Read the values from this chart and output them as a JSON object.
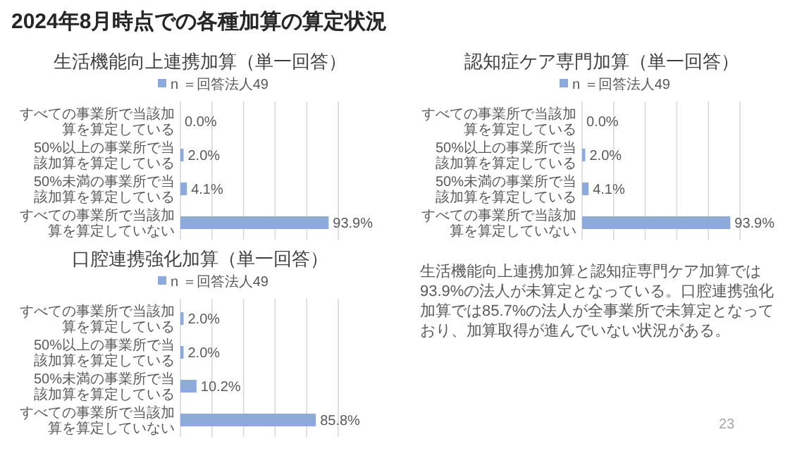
{
  "chart_data": [
    {
      "type": "bar",
      "orientation": "horizontal",
      "title": "生活機能向上連携加算（単一回答）",
      "categories": [
        "すべての事業所で当該加算を算定している",
        "50%以上の事業所で当該加算を算定している",
        "50%未満の事業所で当該加算を算定している",
        "すべての事業所で当該加算を算定していない"
      ],
      "series": [
        {
          "name": "n ＝回答法人49",
          "color": "#8eaadb",
          "values": [
            0.0,
            2.0,
            4.1,
            93.9
          ],
          "value_labels": [
            "0.0%",
            "2.0%",
            "4.1%",
            "93.9%"
          ]
        }
      ],
      "xlim": [
        0,
        100
      ],
      "xticks": [
        {
          "value": 0,
          "label": null
        },
        {
          "value": 20,
          "label": null
        },
        {
          "value": 40,
          "label": null
        },
        {
          "value": 60,
          "label": null
        },
        {
          "value": 80,
          "label": null
        },
        {
          "value": 100,
          "label": null
        }
      ],
      "tick_labels": "y",
      "grid": "x",
      "legend": "top"
    },
    {
      "type": "bar",
      "orientation": "horizontal",
      "title": "認知症ケア専門加算（単一回答）",
      "categories": [
        "すべての事業所で当該加算を算定している",
        "50%以上の事業所で当該加算を算定している",
        "50%未満の事業所で当該加算を算定している",
        "すべての事業所で当該加算を算定していない"
      ],
      "series": [
        {
          "name": "n ＝回答法人49",
          "color": "#8eaadb",
          "values": [
            0.0,
            2.0,
            4.1,
            93.9
          ],
          "value_labels": [
            "0.0%",
            "2.0%",
            "4.1%",
            "93.9%"
          ]
        }
      ],
      "xlim": [
        0,
        100
      ],
      "xticks": [
        {
          "value": 0,
          "label": null
        },
        {
          "value": 20,
          "label": null
        },
        {
          "value": 40,
          "label": null
        },
        {
          "value": 60,
          "label": null
        },
        {
          "value": 80,
          "label": null
        },
        {
          "value": 100,
          "label": null
        }
      ],
      "tick_labels": "y",
      "grid": "x",
      "legend": "top"
    },
    {
      "type": "bar",
      "orientation": "horizontal",
      "title": "口腔連携強化加算（単一回答）",
      "categories": [
        "すべての事業所で当該加算を算定している",
        "50%以上の事業所で当該加算を算定している",
        "50%未満の事業所で当該加算を算定している",
        "すべての事業所で当該加算を算定していない"
      ],
      "series": [
        {
          "name": "n ＝回答法人49",
          "color": "#8eaadb",
          "values": [
            2.0,
            2.0,
            10.2,
            85.8
          ],
          "value_labels": [
            "2.0%",
            "2.0%",
            "10.2%",
            "85.8%"
          ]
        }
      ],
      "xlim": [
        0,
        100
      ],
      "xticks": [
        {
          "value": 0,
          "label": null
        },
        {
          "value": 20,
          "label": null
        },
        {
          "value": 40,
          "label": null
        },
        {
          "value": 60,
          "label": null
        },
        {
          "value": 80,
          "label": null
        },
        {
          "value": 100,
          "label": null
        }
      ],
      "tick_labels": "y",
      "grid": "x",
      "legend": "top"
    },
    {
      "type": "other",
      "title": "2024年8月時点での各種加算の算定状況",
      "annotations": [
        "生活機能向上連携加算と認知症専門ケア加算では93.9%の法人が未算定となっている。口腔連携強化加算では85.7%の法人が全事業所で未算定となっており、加算取得が進んでいない状況がある。",
        "23"
      ]
    }
  ]
}
